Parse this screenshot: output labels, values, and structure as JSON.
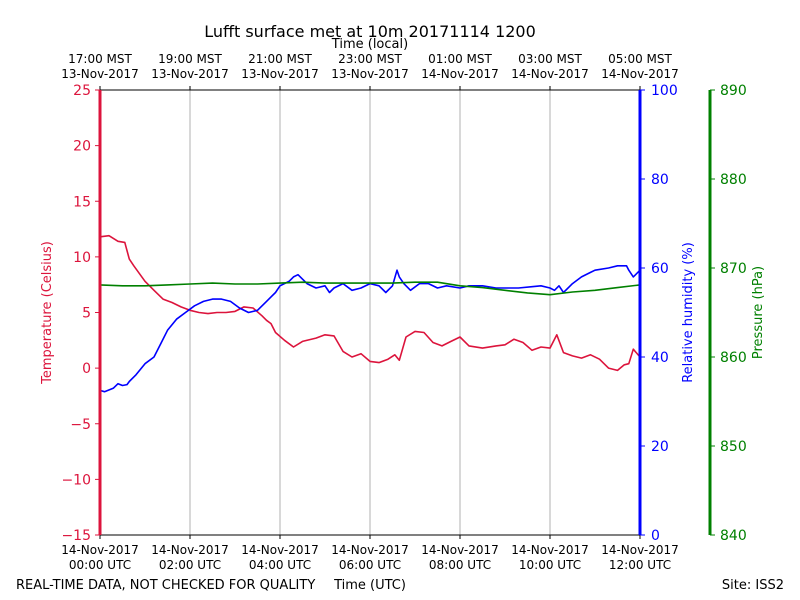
{
  "chart_data": {
    "type": "line",
    "title": "Lufft surface met at 10m 20171114 1200",
    "top_axis_label": "Time (local)",
    "xlabel": "Time (UTC)",
    "footer_left": "REAL-TIME DATA, NOT CHECKED FOR QUALITY",
    "footer_right": "Site: ISS2",
    "xlim_hours": [
      0,
      12
    ],
    "top_ticks": [
      {
        "hour": 0,
        "time": "17:00 MST",
        "date": "13-Nov-2017"
      },
      {
        "hour": 2,
        "time": "19:00 MST",
        "date": "13-Nov-2017"
      },
      {
        "hour": 4,
        "time": "21:00 MST",
        "date": "13-Nov-2017"
      },
      {
        "hour": 6,
        "time": "23:00 MST",
        "date": "13-Nov-2017"
      },
      {
        "hour": 8,
        "time": "01:00 MST",
        "date": "14-Nov-2017"
      },
      {
        "hour": 10,
        "time": "03:00 MST",
        "date": "14-Nov-2017"
      },
      {
        "hour": 12,
        "time": "05:00 MST",
        "date": "14-Nov-2017"
      }
    ],
    "bottom_ticks": [
      {
        "hour": 0,
        "date": "14-Nov-2017",
        "time": "00:00 UTC"
      },
      {
        "hour": 2,
        "date": "14-Nov-2017",
        "time": "02:00 UTC"
      },
      {
        "hour": 4,
        "date": "14-Nov-2017",
        "time": "04:00 UTC"
      },
      {
        "hour": 6,
        "date": "14-Nov-2017",
        "time": "06:00 UTC"
      },
      {
        "hour": 8,
        "date": "14-Nov-2017",
        "time": "08:00 UTC"
      },
      {
        "hour": 10,
        "date": "14-Nov-2017",
        "time": "10:00 UTC"
      },
      {
        "hour": 12,
        "date": "14-Nov-2017",
        "time": "12:00 UTC"
      }
    ],
    "axes": [
      {
        "id": "temp",
        "label": "Temperature (Celsius)",
        "color": "#dc143c",
        "ylim": [
          -15,
          25
        ],
        "ticks": [
          -15,
          -10,
          -5,
          0,
          5,
          10,
          15,
          20,
          25
        ],
        "tick_labels": [
          "−15",
          "−10",
          "−5",
          "0",
          "5",
          "10",
          "15",
          "20",
          "25"
        ]
      },
      {
        "id": "rh",
        "label": "Relative humidity (%)",
        "color": "#0000ff",
        "ylim": [
          0,
          100
        ],
        "ticks": [
          0,
          20,
          40,
          60,
          80,
          100
        ],
        "tick_labels": [
          "0",
          "20",
          "40",
          "60",
          "80",
          "100"
        ]
      },
      {
        "id": "pres",
        "label": "Pressure (hPa)",
        "color": "#008000",
        "ylim": [
          840,
          890
        ],
        "ticks": [
          840,
          850,
          860,
          870,
          880,
          890
        ],
        "tick_labels": [
          "840",
          "850",
          "860",
          "870",
          "880",
          "890"
        ]
      }
    ],
    "series": [
      {
        "name": "Temperature",
        "axis": "temp",
        "color": "#dc143c",
        "x": [
          0,
          0.2,
          0.4,
          0.55,
          0.65,
          0.75,
          1.0,
          1.2,
          1.4,
          1.6,
          1.8,
          2.0,
          2.2,
          2.4,
          2.6,
          2.8,
          3.0,
          3.2,
          3.4,
          3.6,
          3.7,
          3.8,
          3.9,
          4.1,
          4.3,
          4.5,
          4.8,
          5.0,
          5.2,
          5.4,
          5.6,
          5.8,
          6.0,
          6.2,
          6.4,
          6.55,
          6.65,
          6.8,
          7.0,
          7.2,
          7.4,
          7.6,
          7.8,
          8.0,
          8.2,
          8.5,
          8.8,
          9.0,
          9.2,
          9.4,
          9.6,
          9.8,
          10.0,
          10.15,
          10.3,
          10.5,
          10.7,
          10.9,
          11.1,
          11.3,
          11.5,
          11.65,
          11.75,
          11.85,
          12.0
        ],
        "values": [
          11.8,
          11.9,
          11.4,
          11.3,
          9.8,
          9.2,
          7.8,
          7.0,
          6.2,
          5.9,
          5.5,
          5.2,
          5.0,
          4.9,
          5.0,
          5.0,
          5.1,
          5.5,
          5.4,
          4.7,
          4.3,
          4.0,
          3.2,
          2.5,
          1.9,
          2.4,
          2.7,
          3.0,
          2.9,
          1.5,
          1.0,
          1.3,
          0.6,
          0.5,
          0.8,
          1.2,
          0.7,
          2.8,
          3.3,
          3.2,
          2.3,
          2.0,
          2.4,
          2.8,
          2.0,
          1.8,
          2.0,
          2.1,
          2.6,
          2.3,
          1.6,
          1.9,
          1.8,
          3.0,
          1.4,
          1.1,
          0.9,
          1.2,
          0.8,
          0.0,
          -0.2,
          0.3,
          0.4,
          1.7,
          1.0
        ]
      },
      {
        "name": "Relative humidity",
        "axis": "rh",
        "color": "#0000ff",
        "x": [
          0,
          0.1,
          0.3,
          0.4,
          0.5,
          0.6,
          0.65,
          0.8,
          1.0,
          1.2,
          1.35,
          1.5,
          1.7,
          1.9,
          2.1,
          2.3,
          2.5,
          2.7,
          2.9,
          3.1,
          3.3,
          3.5,
          3.7,
          3.8,
          3.9,
          4.0,
          4.2,
          4.3,
          4.4,
          4.6,
          4.8,
          5.0,
          5.1,
          5.2,
          5.4,
          5.6,
          5.8,
          6.0,
          6.2,
          6.35,
          6.5,
          6.6,
          6.65,
          6.75,
          6.9,
          7.1,
          7.3,
          7.5,
          7.7,
          8.0,
          8.2,
          8.5,
          8.8,
          9.0,
          9.3,
          9.6,
          9.8,
          10.0,
          10.1,
          10.2,
          10.3,
          10.5,
          10.7,
          10.9,
          11.0,
          11.3,
          11.5,
          11.7,
          11.75,
          11.85,
          12.0
        ],
        "values": [
          32.5,
          32.2,
          33.0,
          34.0,
          33.6,
          33.8,
          34.5,
          36.0,
          38.5,
          40.0,
          43.0,
          46.0,
          48.5,
          50.0,
          51.5,
          52.5,
          53.0,
          53.0,
          52.5,
          51.0,
          50.0,
          50.5,
          52.5,
          53.5,
          54.5,
          56.0,
          57.0,
          58.0,
          58.5,
          56.5,
          55.5,
          56.0,
          54.5,
          55.5,
          56.5,
          55.0,
          55.5,
          56.5,
          56.0,
          54.5,
          56.0,
          59.5,
          58.0,
          56.5,
          55.0,
          56.5,
          56.5,
          55.5,
          56.0,
          55.5,
          56.0,
          56.0,
          55.5,
          55.5,
          55.5,
          55.8,
          56.0,
          55.5,
          55.0,
          56.0,
          54.5,
          56.5,
          58.0,
          59.0,
          59.5,
          60.0,
          60.5,
          60.5,
          59.5,
          58.0,
          59.5
        ]
      },
      {
        "name": "Pressure",
        "axis": "pres",
        "color": "#008000",
        "x": [
          0,
          0.5,
          1.0,
          1.5,
          2.0,
          2.5,
          3.0,
          3.5,
          4.0,
          4.5,
          5.0,
          5.5,
          6.0,
          6.5,
          7.0,
          7.5,
          8.0,
          8.5,
          9.0,
          9.5,
          10.0,
          10.5,
          11.0,
          11.5,
          12.0
        ],
        "values": [
          868.1,
          868.0,
          868.0,
          868.1,
          868.2,
          868.3,
          868.2,
          868.2,
          868.3,
          868.4,
          868.3,
          868.3,
          868.3,
          868.3,
          868.4,
          868.4,
          868.0,
          867.8,
          867.5,
          867.2,
          867.0,
          867.3,
          867.5,
          867.8,
          868.1
        ]
      }
    ]
  }
}
